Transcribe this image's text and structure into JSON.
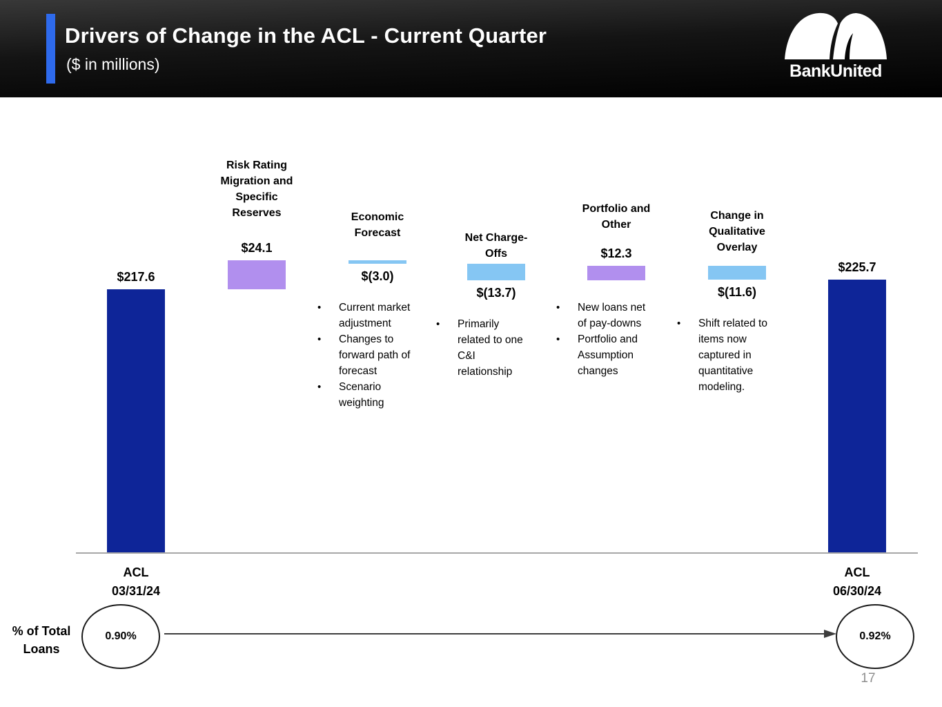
{
  "header": {
    "title": "Drivers of Change in the ACL - Current Quarter",
    "subtitle": "($ in millions)",
    "logo_text": "BankUnited",
    "accent_color": "#2e6aec"
  },
  "footer": {
    "side_label": "% of Total Loans",
    "start_pct": "0.90%",
    "end_pct": "0.92%"
  },
  "page_number": "17",
  "chart_data": {
    "type": "bar",
    "subtype": "waterfall",
    "title": "Drivers of Change in the ACL - Current Quarter",
    "unit": "$ in millions",
    "ylim": [
      0,
      241.7
    ],
    "grid": false,
    "colors": {
      "total": "#0e2598",
      "increase": "#b18fee",
      "decrease": "#85c6f3",
      "axis": "#a6a6a6"
    },
    "columns": [
      {
        "id": "acl-033124",
        "kind": "total",
        "value": 217.6,
        "label": "$217.6",
        "header_lines": [],
        "axis_label_lines": [
          "ACL",
          "03/31/24"
        ],
        "bullets": []
      },
      {
        "id": "risk-rating-migration",
        "kind": "increase",
        "value": 24.1,
        "label": "$24.1",
        "header_lines": [
          "Risk Rating",
          "Migration and",
          "Specific",
          "Reserves"
        ],
        "axis_label_lines": [],
        "bullets": []
      },
      {
        "id": "economic-forecast",
        "kind": "decrease",
        "value": -3.0,
        "label": "$(3.0)",
        "header_lines": [
          "Economic",
          "Forecast"
        ],
        "axis_label_lines": [],
        "bullets": [
          "Current market adjustment",
          "Changes to forward path of forecast",
          "Scenario weighting"
        ]
      },
      {
        "id": "net-charge-offs",
        "kind": "decrease",
        "value": -13.7,
        "label": "$(13.7)",
        "header_lines": [
          "Net Charge-",
          "Offs"
        ],
        "axis_label_lines": [],
        "bullets": [
          "Primarily related to one C&I relationship"
        ]
      },
      {
        "id": "portfolio-and-other",
        "kind": "increase",
        "value": 12.3,
        "label": "$12.3",
        "header_lines": [
          "Portfolio and",
          "Other"
        ],
        "axis_label_lines": [],
        "bullets": [
          "New loans net of pay-downs",
          "Portfolio and Assumption changes"
        ]
      },
      {
        "id": "qualitative-overlay",
        "kind": "decrease",
        "value": -11.6,
        "label": "$(11.6)",
        "header_lines": [
          "Change in",
          "Qualitative",
          "Overlay"
        ],
        "axis_label_lines": [],
        "bullets": [
          "Shift related to items now captured in quantitative modeling."
        ]
      },
      {
        "id": "acl-063024",
        "kind": "total",
        "value": 225.7,
        "label": "$225.7",
        "header_lines": [],
        "axis_label_lines": [
          "ACL",
          "06/30/24"
        ],
        "bullets": []
      }
    ]
  }
}
